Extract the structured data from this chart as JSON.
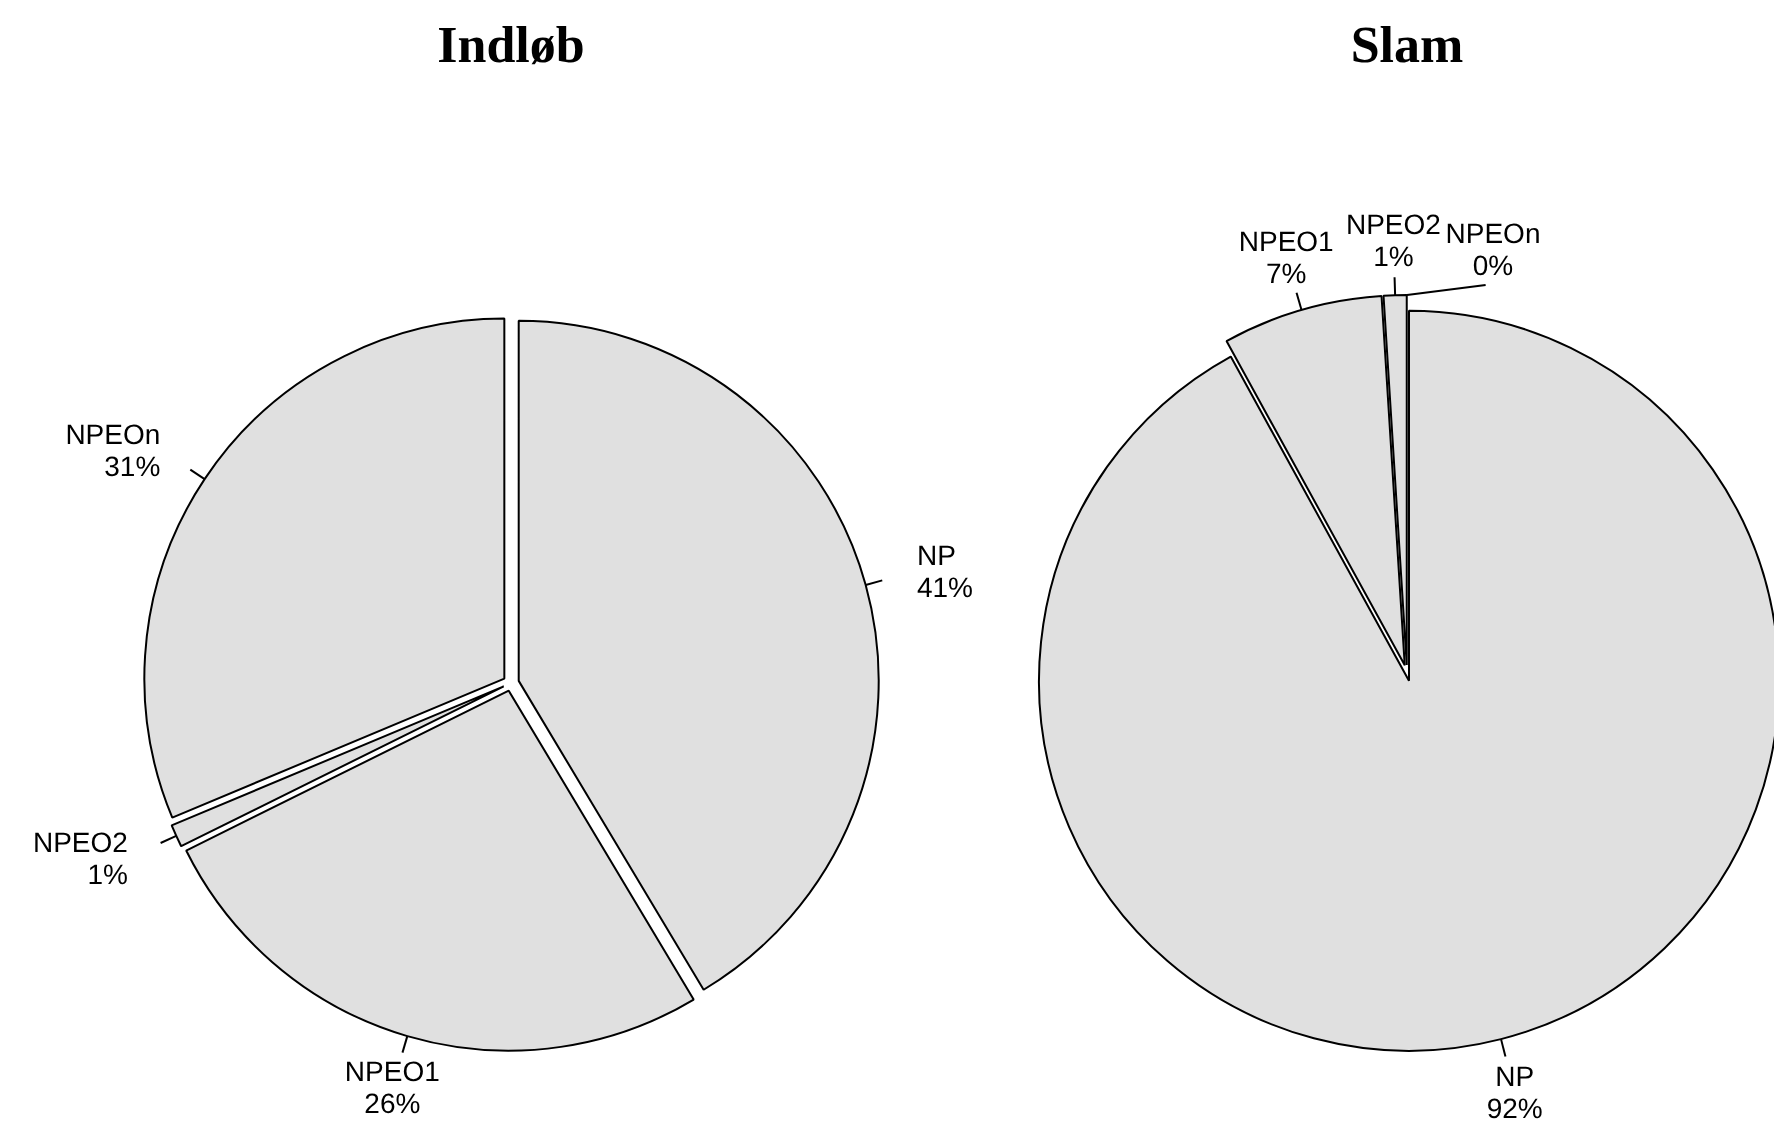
{
  "chart_data": [
    {
      "type": "pie",
      "title": "Indløb",
      "categories": [
        "NP",
        "NPEO1",
        "NPEO2",
        "NPEOn"
      ],
      "values": [
        41,
        26,
        1,
        31
      ],
      "value_labels": [
        "41%",
        "26%",
        "1%",
        "31%"
      ],
      "colors": [
        "#e0e0e0",
        "#e0e0e0",
        "#e0e0e0",
        "#e0e0e0"
      ]
    },
    {
      "type": "pie",
      "title": "Slam",
      "categories": [
        "NP",
        "NPEO1",
        "NPEO2",
        "NPEOn"
      ],
      "values": [
        92,
        7,
        1,
        0
      ],
      "value_labels": [
        "92%",
        "7%",
        "1%",
        "0%"
      ],
      "colors": [
        "#e0e0e0",
        "#e0e0e0",
        "#e0e0e0",
        "#e0e0e0"
      ]
    }
  ]
}
